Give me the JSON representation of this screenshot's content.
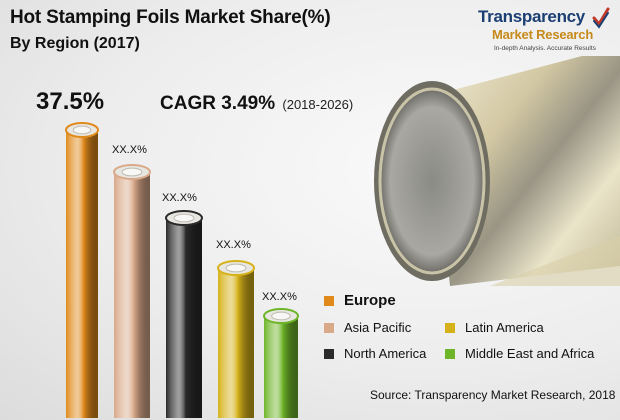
{
  "title": "Hot Stamping Foils Market Share(%)",
  "subtitle": "By Region (2017)",
  "logo": {
    "top": "Transparency",
    "bottom": "Market Research",
    "tagline": "In-depth Analysis. Accurate Results"
  },
  "cagr": {
    "label": "CAGR 3.49%",
    "years": "(2018-2026)"
  },
  "source": "Source: Transparency Market Research, 2018",
  "chart_data": {
    "type": "bar",
    "title": "Hot Stamping Foils Market Share(%)",
    "subtitle": "By Region (2017)",
    "categories": [
      "Europe",
      "Asia Pacific",
      "North America",
      "Latin America",
      "Middle East and Africa"
    ],
    "value_labels": [
      "37.5%",
      "XX.X%",
      "XX.X%",
      "XX.X%",
      "XX.X%"
    ],
    "values": [
      37.5,
      null,
      null,
      null,
      null
    ],
    "colors": [
      "#e08a1c",
      "#d9a98a",
      "#2a2a2a",
      "#d6b21a",
      "#6fb52a"
    ],
    "legend_placement": "bottom-right",
    "grid": false
  },
  "legend": [
    {
      "label": "Europe",
      "color": "#e08a1c",
      "major": true
    },
    {
      "label": "Asia Pacific",
      "color": "#d9a98a",
      "major": false
    },
    {
      "label": "Latin America",
      "color": "#d6b21a",
      "major": false
    },
    {
      "label": "North America",
      "color": "#2a2a2a",
      "major": false
    },
    {
      "label": "Middle East and Africa",
      "color": "#6fb52a",
      "major": false
    }
  ]
}
